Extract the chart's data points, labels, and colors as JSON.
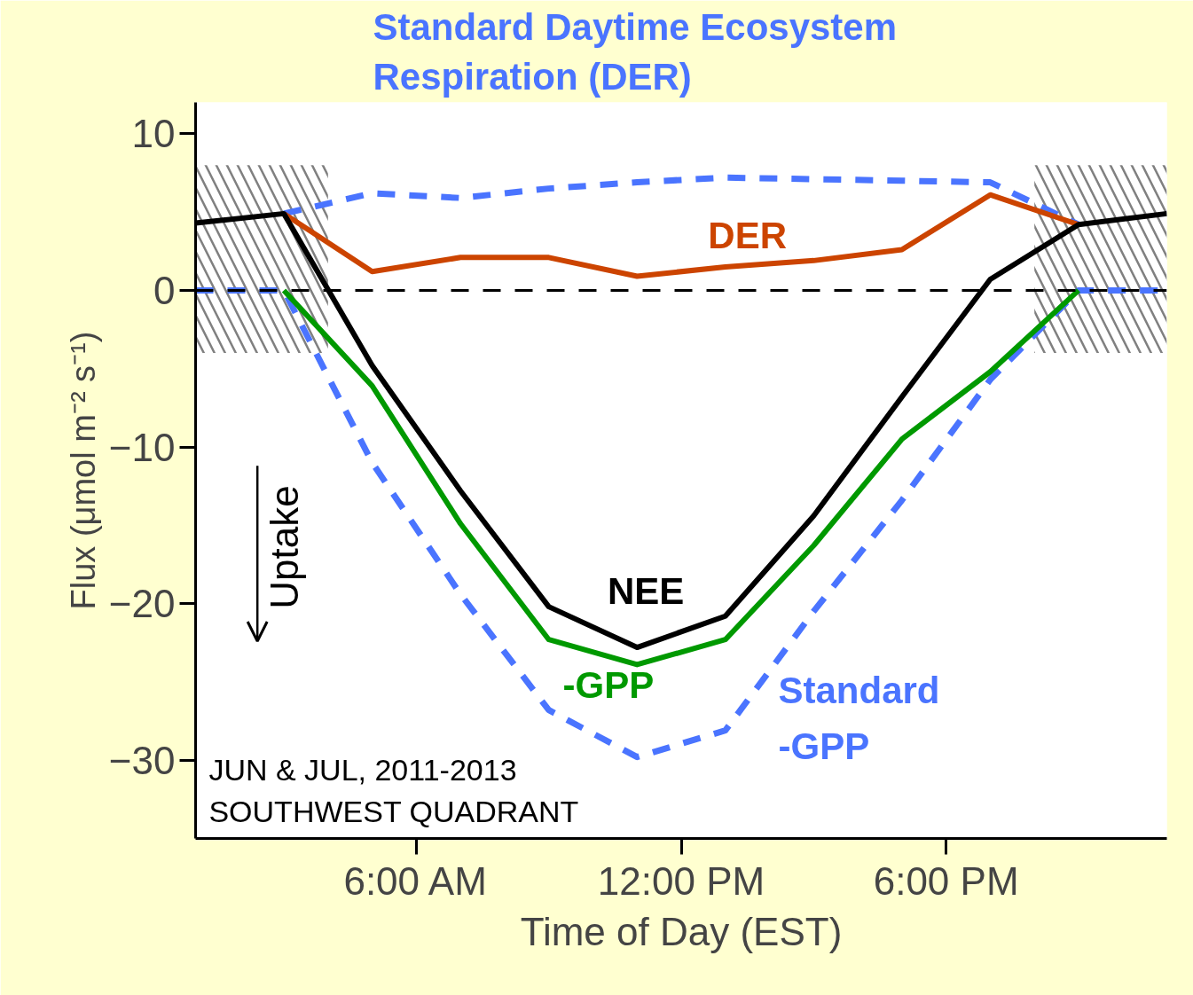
{
  "chart_data": {
    "type": "line",
    "xlabel": "Time of Day (EST)",
    "ylabel": "Flux (μmol m⁻² s⁻¹)",
    "xlim": [
      1,
      23
    ],
    "ylim": [
      -35,
      12
    ],
    "xticks": [
      {
        "value": 6,
        "label": "6:00 AM"
      },
      {
        "value": 12,
        "label": "12:00 PM"
      },
      {
        "value": 18,
        "label": "6:00 PM"
      }
    ],
    "yticks": [
      10,
      0,
      -10,
      -20,
      -30
    ],
    "grid": false,
    "legend": false,
    "marker": "none",
    "series": [
      {
        "name": "NEE",
        "color": "#000000",
        "line_style": "solid",
        "x": [
          1,
          3,
          5,
          7,
          9,
          11,
          13,
          15,
          17,
          19,
          21,
          23
        ],
        "values": [
          4.3,
          4.9,
          -4.8,
          -12.8,
          -20.2,
          -22.8,
          -20.8,
          -14.4,
          -6.8,
          0.7,
          4.2,
          4.9
        ]
      },
      {
        "name": "-GPP",
        "color": "#009900",
        "line_style": "solid",
        "x": [
          3,
          5,
          7,
          9,
          11,
          13,
          15,
          17,
          19,
          21
        ],
        "values": [
          0,
          -6.1,
          -14.9,
          -22.3,
          -23.9,
          -22.3,
          -16.3,
          -9.5,
          -5.2,
          0
        ]
      },
      {
        "name": "DER",
        "color": "#cc4400",
        "line_style": "solid",
        "x": [
          3,
          5,
          7,
          9,
          11,
          13,
          15,
          17,
          19,
          21
        ],
        "values": [
          4.9,
          1.2,
          2.1,
          2.1,
          0.9,
          1.5,
          1.9,
          2.6,
          6.1,
          4.2
        ]
      },
      {
        "name": "Standard Daytime Ecosystem Respiration (DER)",
        "color": "#4a74ff",
        "line_style": "dashed",
        "x": [
          3,
          5,
          7,
          9,
          11,
          13,
          15,
          17,
          19,
          21
        ],
        "values": [
          4.9,
          6.2,
          5.9,
          6.5,
          6.9,
          7.2,
          7.1,
          7.0,
          6.9,
          4.2
        ]
      },
      {
        "name": "Standard -GPP",
        "color": "#4a74ff",
        "line_style": "dashed",
        "x": [
          1,
          3,
          5,
          7,
          9,
          11,
          13,
          15,
          17,
          19,
          21,
          23
        ],
        "values": [
          0,
          0,
          -11,
          -19.4,
          -26.8,
          -29.8,
          -28.1,
          -20.5,
          -13.4,
          -5.7,
          0,
          0
        ]
      }
    ],
    "ref_lines": [
      {
        "axis": "y",
        "value": 0,
        "color": "#000000",
        "line_style": "dashed"
      }
    ],
    "bands": [
      {
        "axis": "x",
        "from": 1,
        "to": 4,
        "color": "#808080"
      },
      {
        "axis": "x",
        "from": 20,
        "to": 23,
        "color": "#808080"
      }
    ],
    "annotations": [
      "Uptake",
      "JUN & JUL, 2011-2013",
      "SOUTHWEST QUADRANT"
    ]
  }
}
